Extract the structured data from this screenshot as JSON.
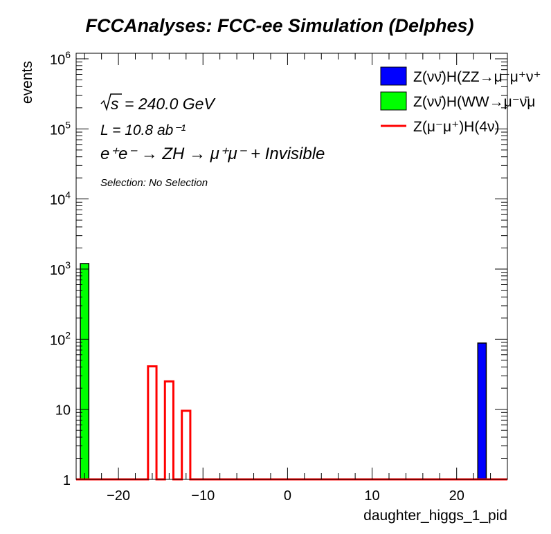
{
  "chart_data": {
    "type": "bar",
    "title": "FCCAnalyses: FCC-ee Simulation (Delphes)",
    "xlabel": "daughter_higgs_1_pid",
    "ylabel": "events",
    "xlim": [
      -25,
      26
    ],
    "ylim": [
      1,
      1200000
    ],
    "yscale": "log",
    "bin_width": 1,
    "x_ticks": [
      -20,
      -10,
      0,
      10,
      20
    ],
    "y_ticks": [
      1,
      10,
      100,
      1000,
      10000,
      100000,
      1000000
    ],
    "y_tick_labels": [
      {
        "base": "1",
        "exp": ""
      },
      {
        "base": "10",
        "exp": ""
      },
      {
        "base": "10",
        "exp": "2"
      },
      {
        "base": "10",
        "exp": "3"
      },
      {
        "base": "10",
        "exp": "4"
      },
      {
        "base": "10",
        "exp": "5"
      },
      {
        "base": "10",
        "exp": "6"
      }
    ],
    "legend_position": "top-right",
    "series": [
      {
        "name": "Z(νν̄)H(ZZ→μ⁻μ⁺ν⁺",
        "style": "filled",
        "color": "#0000ff",
        "bins": [
          {
            "x": 23,
            "value": 88
          }
        ]
      },
      {
        "name": "Z(νν̄)H(WW→μ⁻ν̄μ",
        "style": "filled",
        "color": "#00ff00",
        "bins": [
          {
            "x": -24,
            "value": 1200
          }
        ]
      },
      {
        "name": "Z(μ⁻μ⁺)H(4ν)",
        "style": "line",
        "color": "#ff0000",
        "bins": [
          {
            "x": -16,
            "value": 41
          },
          {
            "x": -14,
            "value": 25
          },
          {
            "x": -12,
            "value": 9.5
          }
        ]
      }
    ],
    "annotations": [
      {
        "id": "sqrt_s",
        "text": "= 240.0 GeV"
      },
      {
        "id": "lumi",
        "text": "L = 10.8 ab⁻¹"
      },
      {
        "id": "process",
        "text": "e⁺e⁻ → ZH → μ⁺μ⁻ + Invisible"
      },
      {
        "id": "selection",
        "text": "Selection: No Selection"
      }
    ]
  }
}
